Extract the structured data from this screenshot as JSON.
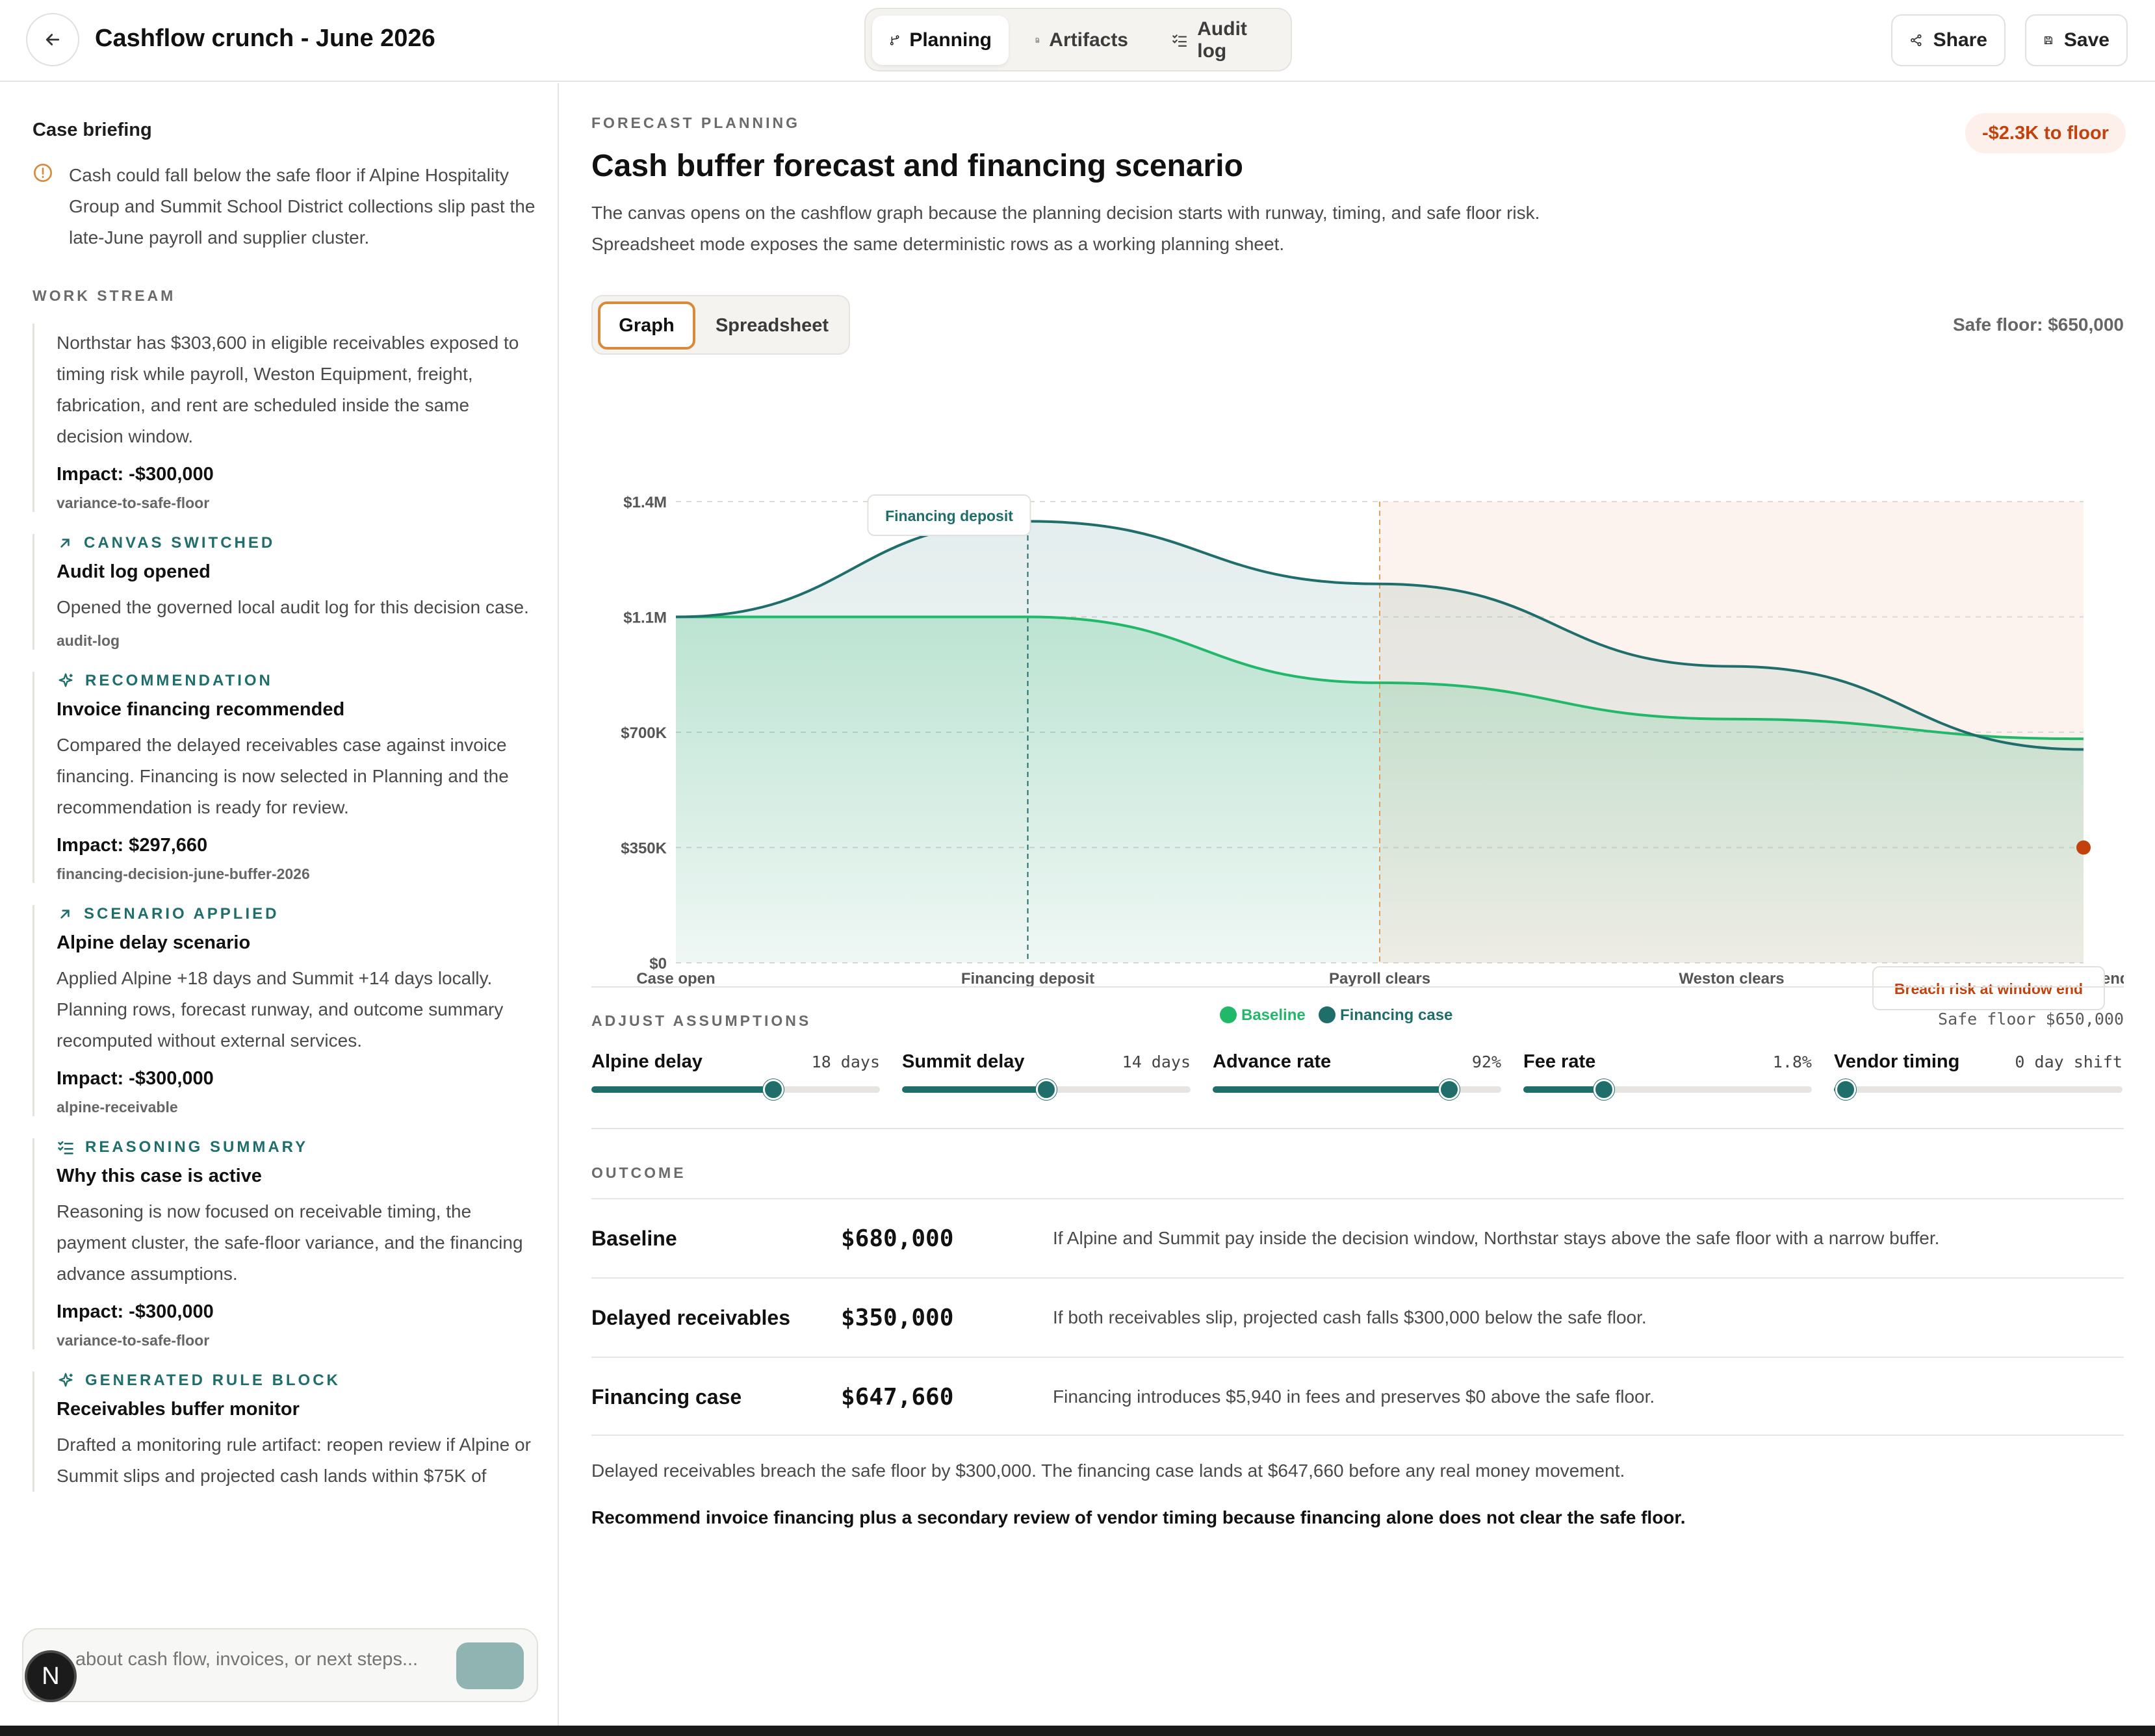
{
  "header": {
    "title": "Cashflow crunch - June 2026",
    "tabs": [
      {
        "label": "Planning",
        "icon": "branch-icon",
        "active": true
      },
      {
        "label": "Artifacts",
        "icon": "document-icon",
        "active": false
      },
      {
        "label": "Audit log",
        "icon": "checklist-icon",
        "active": false
      }
    ],
    "share_label": "Share",
    "save_label": "Save"
  },
  "sidebar": {
    "briefing_title": "Case briefing",
    "briefing_text": "Cash could fall below the safe floor if Alpine Hospitality Group and Summit School District collections slip past the late-June payroll and supplier cluster.",
    "work_stream_label": "WORK STREAM",
    "entries": [
      {
        "kind": "",
        "icon": "",
        "title": "",
        "body": "Northstar has $303,600 in eligible receivables exposed to timing risk while payroll, Weston Equipment, freight, fabrication, and rent are scheduled inside the same decision window.",
        "impact": "Impact: -$300,000",
        "ref": "variance-to-safe-floor"
      },
      {
        "kind": "CANVAS SWITCHED",
        "icon": "arrow-up-right-icon",
        "title": "Audit log opened",
        "body": "Opened the governed local audit log for this decision case.",
        "impact": "",
        "ref": "audit-log"
      },
      {
        "kind": "RECOMMENDATION",
        "icon": "sparkle-icon",
        "title": "Invoice financing recommended",
        "body": "Compared the delayed receivables case against invoice financing. Financing is now selected in Planning and the recommendation is ready for review.",
        "impact": "Impact: $297,660",
        "ref": "financing-decision-june-buffer-2026"
      },
      {
        "kind": "SCENARIO APPLIED",
        "icon": "arrow-up-right-icon",
        "title": "Alpine delay scenario",
        "body": "Applied Alpine +18 days and Summit +14 days locally. Planning rows, forecast runway, and outcome summary recomputed without external services.",
        "impact": "Impact: -$300,000",
        "ref": "alpine-receivable"
      },
      {
        "kind": "REASONING SUMMARY",
        "icon": "checklist-icon",
        "title": "Why this case is active",
        "body": "Reasoning is now focused on receivable timing, the payment cluster, the safe-floor variance, and the financing advance assumptions.",
        "impact": "Impact: -$300,000",
        "ref": "variance-to-safe-floor"
      },
      {
        "kind": "GENERATED RULE BLOCK",
        "icon": "sparkle-icon",
        "title": "Receivables buffer monitor",
        "body": "Drafted a monitoring rule artifact: reopen review if Alpine or Summit slips and projected cash lands within $75K of",
        "impact": "",
        "ref": ""
      }
    ],
    "chat_placeholder": "about cash flow, invoices, or next steps...",
    "avatar_letter": "N"
  },
  "main": {
    "eyebrow": "FORECAST PLANNING",
    "floor_badge": "-$2.3K to floor",
    "title": "Cash buffer forecast and financing scenario",
    "description_1": "The canvas opens on the cashflow graph because the planning decision starts with runway, timing, and safe floor risk.",
    "description_2": "Spreadsheet mode exposes the same deterministic rows as a working planning sheet.",
    "modes": {
      "graph": "Graph",
      "spreadsheet": "Spreadsheet"
    },
    "safe_floor_label": "Safe floor: $650,000"
  },
  "chart_data": {
    "type": "area",
    "x": [
      "Case open",
      "Financing deposit",
      "Payroll clears",
      "Weston clears",
      "Window end"
    ],
    "y_ticks": [
      "$0",
      "$350K",
      "$700K",
      "$1.1M",
      "$1.4M"
    ],
    "ylim": [
      0,
      1400000
    ],
    "series": [
      {
        "name": "Baseline",
        "color": "#22b86a",
        "values": [
          1050000,
          1050000,
          850000,
          740000,
          680000
        ]
      },
      {
        "name": "Financing case",
        "color": "#1f6e6b",
        "values": [
          1050000,
          1340000,
          1150000,
          900000,
          647660
        ]
      }
    ],
    "annotations": {
      "financing_deposit": "Financing deposit",
      "breach": "Breach risk at window end",
      "breach_value": 350000
    },
    "risk_window": [
      "Payroll clears",
      "Window end"
    ],
    "legend": "bottom-center",
    "grid": true
  },
  "assumptions": {
    "label": "ADJUST ASSUMPTIONS",
    "safe_floor": "Safe floor $650,000",
    "sliders": [
      {
        "name": "Alpine delay",
        "value": "18 days",
        "fraction": 0.63
      },
      {
        "name": "Summit delay",
        "value": "14 days",
        "fraction": 0.5
      },
      {
        "name": "Advance rate",
        "value": "92%",
        "fraction": 0.82
      },
      {
        "name": "Fee rate",
        "value": "1.8%",
        "fraction": 0.28
      },
      {
        "name": "Vendor timing",
        "value": "0 day shift",
        "fraction": 0.04
      }
    ]
  },
  "outcome": {
    "label": "OUTCOME",
    "rows": [
      {
        "name": "Baseline",
        "value": "$680,000",
        "desc": "If Alpine and Summit pay inside the decision window, Northstar stays above the safe floor with a narrow buffer."
      },
      {
        "name": "Delayed receivables",
        "value": "$350,000",
        "desc": "If both receivables slip, projected cash falls $300,000 below the safe floor."
      },
      {
        "name": "Financing case",
        "value": "$647,660",
        "desc": "Financing introduces $5,940 in fees and preserves $0 above the safe floor."
      }
    ],
    "summary": "Delayed receivables breach the safe floor by $300,000. The financing case lands at $647,660 before any real money movement.",
    "recommendation": "Recommend invoice financing plus a secondary review of vendor timing because financing alone does not clear the safe floor."
  },
  "colors": {
    "accent": "#1f6e6b",
    "baseline": "#22b86a",
    "warning": "#c2410c",
    "risk_bg": "#fdf3ee"
  }
}
